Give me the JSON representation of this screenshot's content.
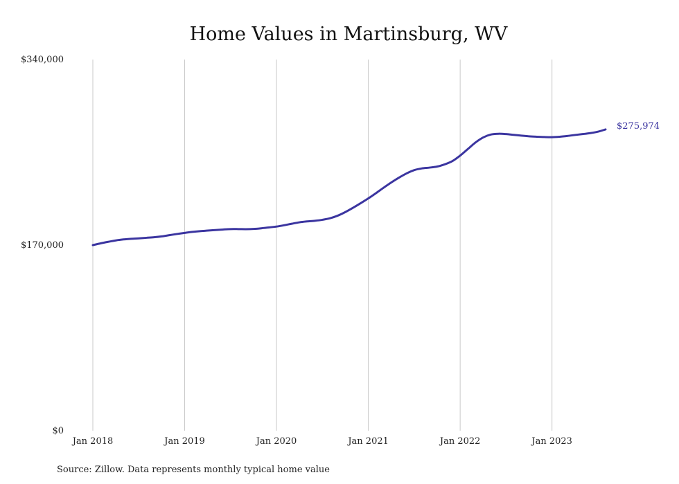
{
  "chart_data": {
    "type": "line",
    "title": "Home Values in Martinsburg, WV",
    "xlabel": "",
    "ylabel": "",
    "x_ticks": [
      "Jan 2018",
      "Jan 2019",
      "Jan 2020",
      "Jan 2021",
      "Jan 2022",
      "Jan 2023"
    ],
    "y_ticks": [
      "$0",
      "$170,000",
      "$340,000"
    ],
    "ylim": [
      0,
      340000
    ],
    "xlim": [
      "2018-01",
      "2023-08"
    ],
    "grid": "vertical",
    "legend": "none",
    "end_label": "$275,974",
    "series": [
      {
        "color": "#3b35a0",
        "points": [
          [
            "2018-01",
            170000
          ],
          [
            "2018-02",
            171600
          ],
          [
            "2018-03",
            173000
          ],
          [
            "2018-04",
            174300
          ],
          [
            "2018-05",
            175200
          ],
          [
            "2018-06",
            175800
          ],
          [
            "2018-07",
            176200
          ],
          [
            "2018-08",
            176700
          ],
          [
            "2018-09",
            177200
          ],
          [
            "2018-10",
            178000
          ],
          [
            "2018-11",
            179100
          ],
          [
            "2018-12",
            180200
          ],
          [
            "2019-01",
            181200
          ],
          [
            "2019-02",
            182100
          ],
          [
            "2019-03",
            182800
          ],
          [
            "2019-04",
            183300
          ],
          [
            "2019-05",
            183800
          ],
          [
            "2019-06",
            184300
          ],
          [
            "2019-07",
            184700
          ],
          [
            "2019-08",
            184700
          ],
          [
            "2019-09",
            184600
          ],
          [
            "2019-10",
            184800
          ],
          [
            "2019-11",
            185400
          ],
          [
            "2019-12",
            186200
          ],
          [
            "2020-01",
            187000
          ],
          [
            "2020-02",
            188200
          ],
          [
            "2020-03",
            189600
          ],
          [
            "2020-04",
            190900
          ],
          [
            "2020-05",
            191700
          ],
          [
            "2020-06",
            192300
          ],
          [
            "2020-07",
            193200
          ],
          [
            "2020-08",
            194600
          ],
          [
            "2020-09",
            197000
          ],
          [
            "2020-10",
            200300
          ],
          [
            "2020-11",
            204200
          ],
          [
            "2020-12",
            208400
          ],
          [
            "2021-01",
            212800
          ],
          [
            "2021-02",
            217600
          ],
          [
            "2021-03",
            222600
          ],
          [
            "2021-04",
            227400
          ],
          [
            "2021-05",
            231800
          ],
          [
            "2021-06",
            235700
          ],
          [
            "2021-07",
            238700
          ],
          [
            "2021-08",
            240300
          ],
          [
            "2021-09",
            241000
          ],
          [
            "2021-10",
            242000
          ],
          [
            "2021-11",
            244000
          ],
          [
            "2021-12",
            247000
          ],
          [
            "2022-01",
            252000
          ],
          [
            "2022-02",
            258000
          ],
          [
            "2022-03",
            264000
          ],
          [
            "2022-04",
            268600
          ],
          [
            "2022-05",
            271300
          ],
          [
            "2022-06",
            272000
          ],
          [
            "2022-07",
            271700
          ],
          [
            "2022-08",
            271000
          ],
          [
            "2022-09",
            270300
          ],
          [
            "2022-10",
            269700
          ],
          [
            "2022-11",
            269300
          ],
          [
            "2022-12",
            269000
          ],
          [
            "2023-01",
            268900
          ],
          [
            "2023-02",
            269300
          ],
          [
            "2023-03",
            270000
          ],
          [
            "2023-04",
            270900
          ],
          [
            "2023-05",
            271700
          ],
          [
            "2023-06",
            272600
          ],
          [
            "2023-07",
            273900
          ],
          [
            "2023-08",
            275974
          ]
        ]
      }
    ]
  },
  "footer": {
    "source": "Source: Zillow. Data represents monthly typical home value"
  }
}
